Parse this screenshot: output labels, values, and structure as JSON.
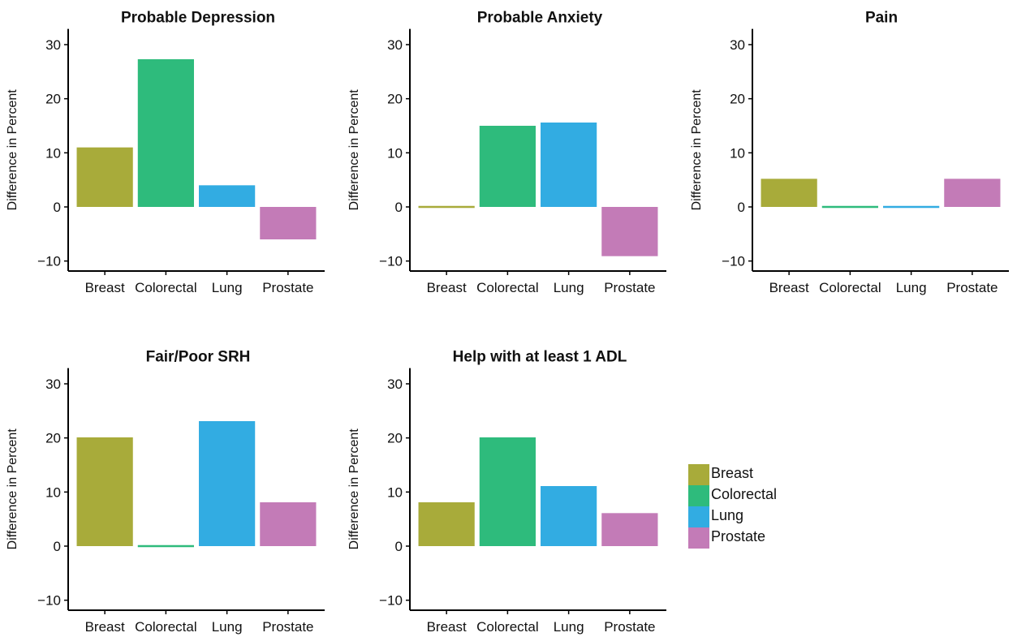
{
  "chart_data": [
    {
      "type": "bar",
      "title": "Probable Depression",
      "ylabel": "Difference in Percent",
      "xlabel": "",
      "ylim": [
        -12,
        32
      ],
      "yticks": [
        -10,
        0,
        10,
        20,
        30
      ],
      "categories": [
        "Breast",
        "Colorectal",
        "Lung",
        "Prostate"
      ],
      "values": [
        11,
        27.3,
        4,
        -6
      ]
    },
    {
      "type": "bar",
      "title": "Probable Anxiety",
      "ylabel": "Difference in Percent",
      "xlabel": "",
      "ylim": [
        -12,
        32
      ],
      "yticks": [
        -10,
        0,
        10,
        20,
        30
      ],
      "categories": [
        "Breast",
        "Colorectal",
        "Lung",
        "Prostate"
      ],
      "values": [
        0,
        15,
        15.6,
        -9.1
      ]
    },
    {
      "type": "bar",
      "title": "Pain",
      "ylabel": "Difference in Percent",
      "xlabel": "",
      "ylim": [
        -12,
        32
      ],
      "yticks": [
        -10,
        0,
        10,
        20,
        30
      ],
      "categories": [
        "Breast",
        "Colorectal",
        "Lung",
        "Prostate"
      ],
      "values": [
        5.2,
        0,
        0,
        5.2
      ]
    },
    {
      "type": "bar",
      "title": "Fair/Poor SRH",
      "ylabel": "Difference in Percent",
      "xlabel": "",
      "ylim": [
        -12,
        32
      ],
      "yticks": [
        -10,
        0,
        10,
        20,
        30
      ],
      "categories": [
        "Breast",
        "Colorectal",
        "Lung",
        "Prostate"
      ],
      "values": [
        20.1,
        0,
        23.1,
        8.1
      ]
    },
    {
      "type": "bar",
      "title": "Help with at least 1 ADL",
      "ylabel": "Difference in Percent",
      "xlabel": "",
      "ylim": [
        -12,
        32
      ],
      "yticks": [
        -10,
        0,
        10,
        20,
        30
      ],
      "categories": [
        "Breast",
        "Colorectal",
        "Lung",
        "Prostate"
      ],
      "values": [
        8.1,
        20.1,
        11.1,
        6.1
      ]
    }
  ],
  "colors": {
    "Breast": "#a8ab3a",
    "Colorectal": "#2ebb7c",
    "Lung": "#32ace2",
    "Prostate": "#c37bb7"
  },
  "legend": {
    "items": [
      "Breast",
      "Colorectal",
      "Lung",
      "Prostate"
    ]
  }
}
